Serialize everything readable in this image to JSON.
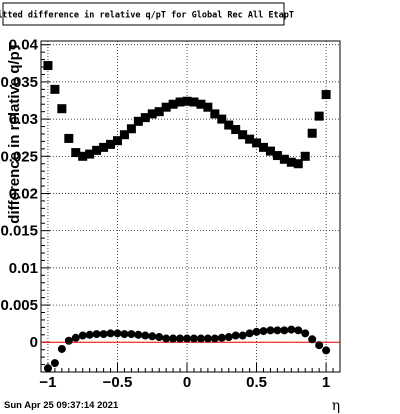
{
  "chart_data": {
    "type": "scatter",
    "title": "Fitted difference in relative q/pT for Global Rec All EtapT",
    "xlabel": "η",
    "ylabel": "difference in relative q/pT",
    "xlim": [
      -1.05,
      1.1
    ],
    "ylim": [
      -0.004,
      0.0405
    ],
    "x_ticks": [
      -1,
      -0.5,
      0,
      0.5,
      1
    ],
    "x_tick_labels": [
      "−1",
      "−0.5",
      "0",
      "0.5",
      "1"
    ],
    "y_ticks": [
      0,
      0.005,
      0.01,
      0.015,
      0.02,
      0.025,
      0.03,
      0.035,
      0.04
    ],
    "y_tick_labels": [
      "0",
      "0.005",
      "0.01",
      "0.015",
      "0.02",
      "0.025",
      "0.03",
      "0.035",
      "0.04"
    ],
    "grid": true,
    "reference_line": {
      "y": 0,
      "color": "#ff0000"
    },
    "series": [
      {
        "marker": "square",
        "color": "#000000",
        "x": [
          -1.0,
          -0.95,
          -0.9,
          -0.85,
          -0.8,
          -0.75,
          -0.7,
          -0.65,
          -0.6,
          -0.55,
          -0.5,
          -0.45,
          -0.4,
          -0.35,
          -0.3,
          -0.25,
          -0.2,
          -0.15,
          -0.1,
          -0.05,
          0.0,
          0.05,
          0.1,
          0.15,
          0.2,
          0.25,
          0.3,
          0.35,
          0.4,
          0.45,
          0.5,
          0.55,
          0.6,
          0.65,
          0.7,
          0.75,
          0.8,
          0.85,
          0.9,
          0.95,
          1.0
        ],
        "y": [
          0.0372,
          0.034,
          0.0314,
          0.0274,
          0.0255,
          0.025,
          0.0253,
          0.0258,
          0.0262,
          0.0266,
          0.0271,
          0.0279,
          0.0287,
          0.0297,
          0.0302,
          0.0307,
          0.031,
          0.0316,
          0.032,
          0.0323,
          0.0324,
          0.0323,
          0.032,
          0.0316,
          0.0307,
          0.03,
          0.0292,
          0.0286,
          0.0279,
          0.0273,
          0.0268,
          0.0262,
          0.0257,
          0.0251,
          0.0246,
          0.0242,
          0.024,
          0.025,
          0.0281,
          0.0304,
          0.0333
        ]
      },
      {
        "marker": "circle",
        "color": "#000000",
        "x": [
          -1.0,
          -0.95,
          -0.9,
          -0.85,
          -0.8,
          -0.75,
          -0.7,
          -0.65,
          -0.6,
          -0.55,
          -0.5,
          -0.45,
          -0.4,
          -0.35,
          -0.3,
          -0.25,
          -0.2,
          -0.15,
          -0.1,
          -0.05,
          0.0,
          0.05,
          0.1,
          0.15,
          0.2,
          0.25,
          0.3,
          0.35,
          0.4,
          0.45,
          0.5,
          0.55,
          0.6,
          0.65,
          0.7,
          0.75,
          0.8,
          0.85,
          0.9,
          0.95,
          1.0
        ],
        "y": [
          -0.0035,
          -0.0028,
          -0.0009,
          0.0002,
          0.0006,
          0.0009,
          0.001,
          0.0011,
          0.0011,
          0.0012,
          0.0012,
          0.0011,
          0.0011,
          0.001,
          0.0009,
          0.0008,
          0.0007,
          0.0005,
          0.0005,
          0.0005,
          0.0005,
          0.0005,
          0.0005,
          0.0005,
          0.0005,
          0.0006,
          0.0007,
          0.0009,
          0.0009,
          0.0012,
          0.0014,
          0.0015,
          0.0016,
          0.0016,
          0.0016,
          0.0017,
          0.0016,
          0.0012,
          0.0004,
          -0.0004,
          -0.0011
        ]
      }
    ]
  },
  "footer": {
    "timestamp": "Sun Apr 25 09:37:14 2021"
  }
}
